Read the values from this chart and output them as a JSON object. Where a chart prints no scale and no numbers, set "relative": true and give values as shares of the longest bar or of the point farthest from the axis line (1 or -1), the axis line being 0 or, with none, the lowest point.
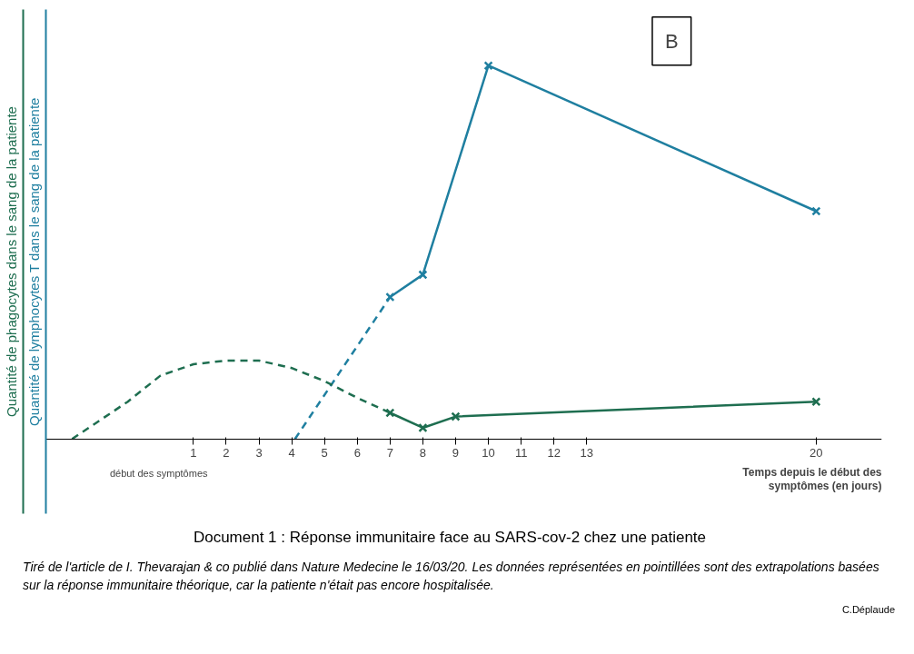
{
  "chart_data": {
    "type": "line",
    "relative": true,
    "title": "Document 1 : Réponse immunitaire face au SARS-cov-2 chez une patiente",
    "xlabel": "Temps depuis le début des symptômes (en jours)",
    "ylabel": "Quantité de lymphocytes T dans le sang de la patiente",
    "y2label": "Quantité de phagocytes dans le sang de la patiente",
    "xlim": [
      -3.5,
      22
    ],
    "xticks": [
      1,
      2,
      3,
      4,
      5,
      6,
      7,
      8,
      9,
      10,
      11,
      12,
      13,
      20
    ],
    "grid": false,
    "series": [
      {
        "color": "#1f7fa0",
        "line_style": "dashed",
        "x": [
          4.1,
          7
        ],
        "values": [
          0,
          0.38
        ]
      },
      {
        "color": "#1f7fa0",
        "line_style": "solid",
        "marker": "cross",
        "x": [
          7,
          8,
          10,
          20
        ],
        "values": [
          0.38,
          0.44,
          1,
          0.61
        ]
      },
      {
        "color": "#1e6e50",
        "line_style": "dashed",
        "x": [
          -2.7,
          -1,
          0,
          1,
          2,
          2.4,
          3,
          4,
          5,
          6,
          7
        ],
        "values": [
          0,
          0.1,
          0.17,
          0.2,
          0.21,
          0.21,
          0.21,
          0.19,
          0.155,
          0.11,
          0.07
        ]
      },
      {
        "color": "#1e6e50",
        "line_style": "solid",
        "marker": "cross",
        "x": [
          7,
          8,
          9,
          20
        ],
        "values": [
          0.07,
          0.03,
          0.06,
          0.1
        ]
      }
    ],
    "annotations": [
      "B",
      "début des symptômes",
      "Tiré de l'article de I. Thevarajan & co publié dans Nature Medecine le 16/03/20. Les données représentées en pointillées sont des extrapolations basées sur la réponse immunitaire théorique, car la patiente n'était pas encore hospitalisée.",
      "C.Déplaude"
    ]
  }
}
